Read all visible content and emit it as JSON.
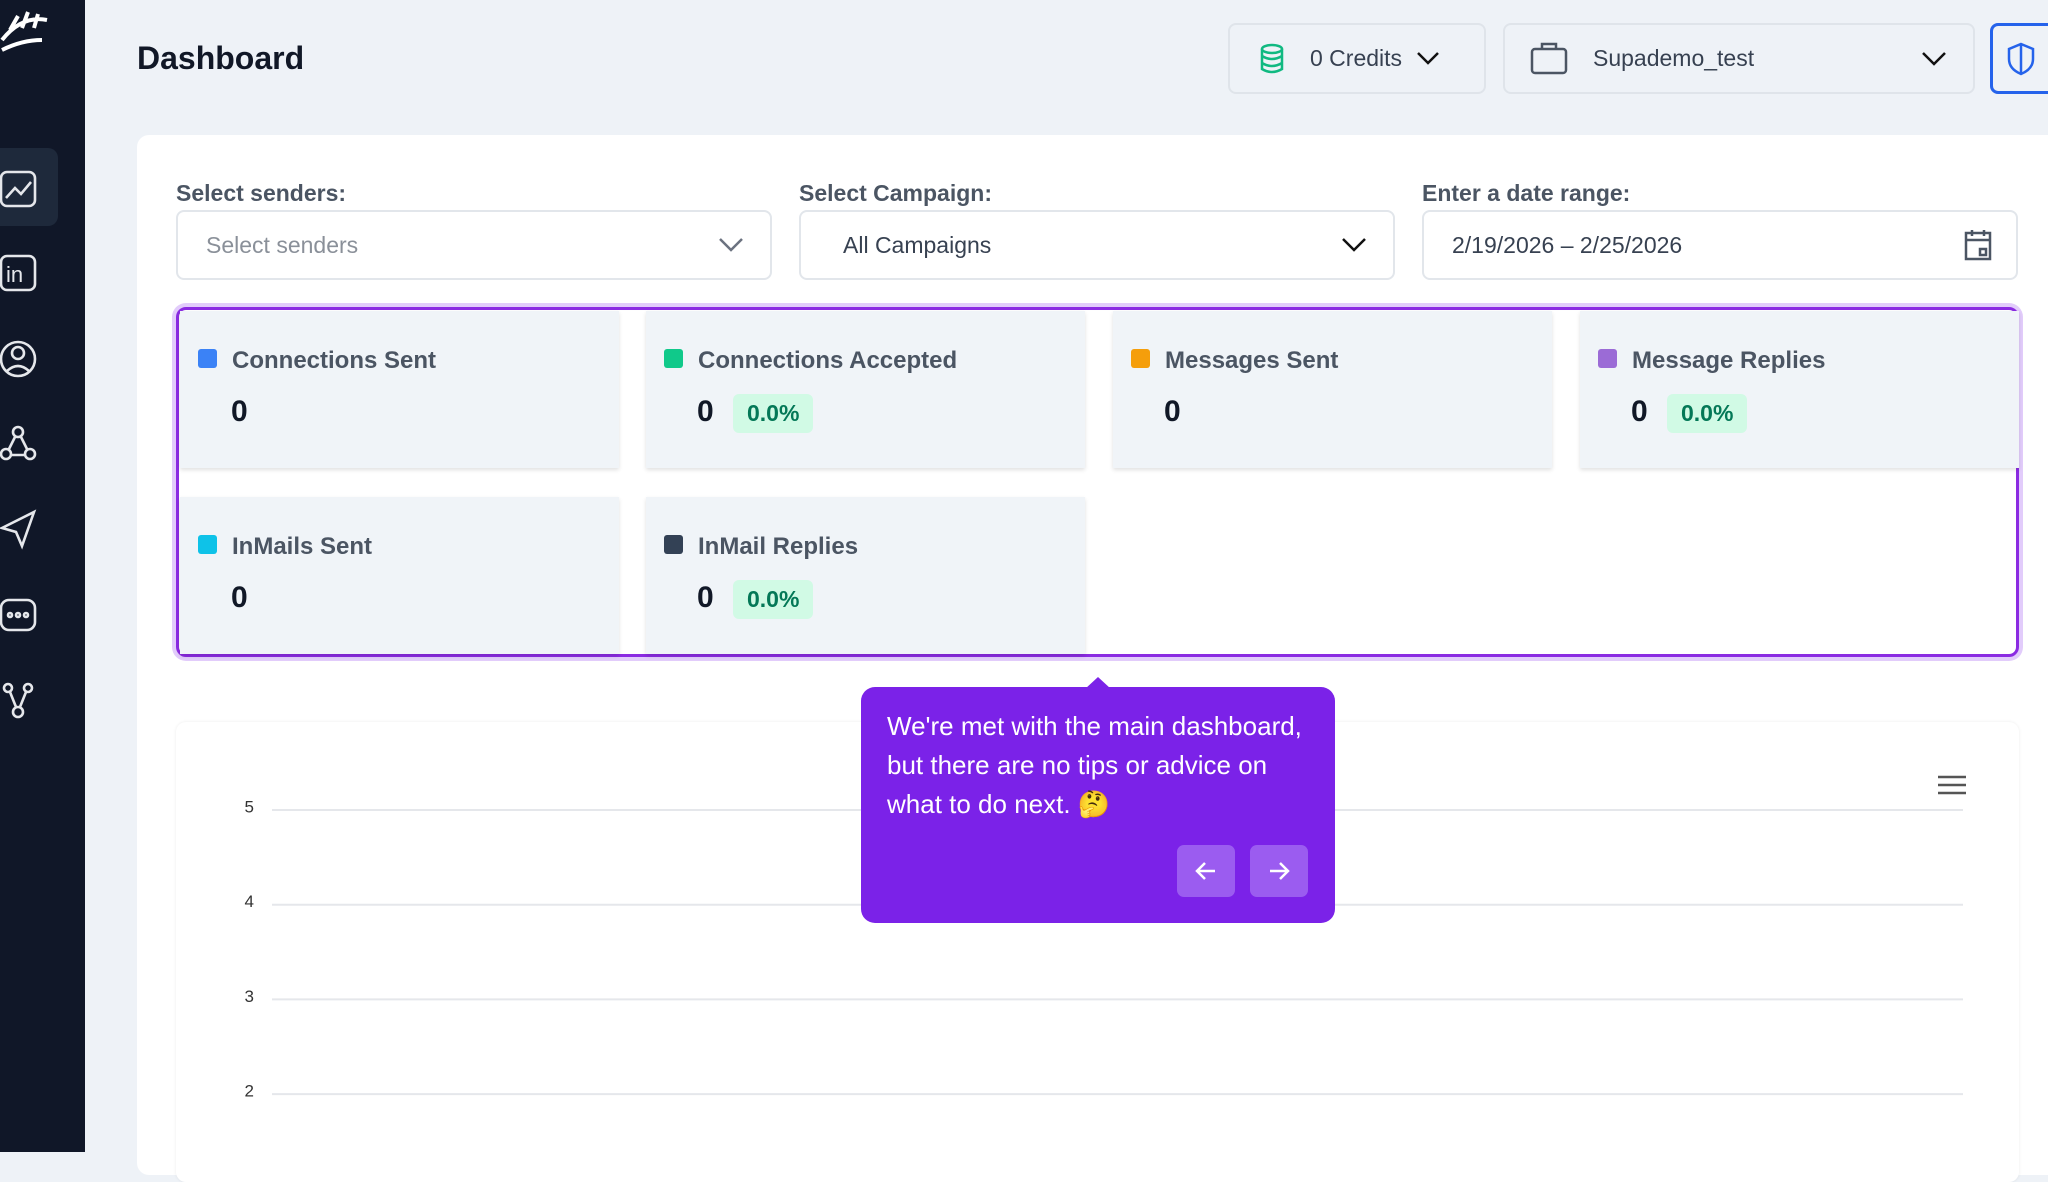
{
  "header": {
    "title": "Dashboard",
    "credits": "0 Credits",
    "workspace": "Supademo_test"
  },
  "filters": [
    {
      "label": "Select senders:",
      "value": "Select senders"
    },
    {
      "label": "Select Campaign:",
      "value": "All Campaigns"
    },
    {
      "label": "Enter a date range:",
      "value": "2/19/2026 – 2/25/2026"
    }
  ],
  "stats": [
    {
      "label": "Connections Sent",
      "value": 0,
      "color": "#3b82f6"
    },
    {
      "label": "Connections Accepted",
      "value": 0,
      "percent": "0.0%",
      "color": "#10c98a"
    },
    {
      "label": "Messages Sent",
      "value": 0,
      "color": "#f59e0b"
    },
    {
      "label": "Message Replies",
      "value": 0,
      "percent": "0.0%",
      "color": "#9b6bd6"
    },
    {
      "label": "InMails Sent",
      "value": 0,
      "color": "#0ec2e8"
    },
    {
      "label": "InMail Replies",
      "value": 0,
      "percent": "0.0%",
      "color": "#334155"
    }
  ],
  "chart": {
    "ylim": [
      0,
      5
    ],
    "yticks": [
      5,
      4,
      3,
      2
    ]
  },
  "tooltip": {
    "text": "We're met with the main dashboard, but there are no tips or advice on what to do next. 🤔"
  }
}
